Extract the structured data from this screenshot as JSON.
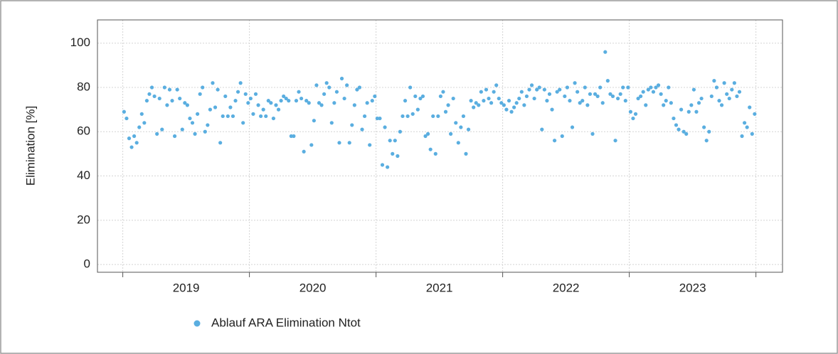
{
  "chart_data": {
    "type": "scatter",
    "y_label": "Elimination [%]",
    "x": [
      2019.01,
      2019.03,
      2019.05,
      2019.07,
      2019.09,
      2019.11,
      2019.13,
      2019.15,
      2019.17,
      2019.19,
      2019.21,
      2019.23,
      2019.25,
      2019.27,
      2019.29,
      2019.31,
      2019.33,
      2019.35,
      2019.37,
      2019.39,
      2019.41,
      2019.43,
      2019.45,
      2019.47,
      2019.49,
      2019.51,
      2019.53,
      2019.55,
      2019.57,
      2019.59,
      2019.61,
      2019.63,
      2019.65,
      2019.67,
      2019.69,
      2019.71,
      2019.73,
      2019.75,
      2019.77,
      2019.79,
      2019.81,
      2019.83,
      2019.85,
      2019.87,
      2019.89,
      2019.91,
      2019.93,
      2019.95,
      2019.97,
      2019.99,
      2020.01,
      2020.03,
      2020.05,
      2020.07,
      2020.09,
      2020.11,
      2020.13,
      2020.15,
      2020.17,
      2020.19,
      2020.21,
      2020.23,
      2020.25,
      2020.27,
      2020.29,
      2020.31,
      2020.33,
      2020.35,
      2020.37,
      2020.39,
      2020.41,
      2020.43,
      2020.45,
      2020.47,
      2020.49,
      2020.51,
      2020.53,
      2020.55,
      2020.57,
      2020.59,
      2020.61,
      2020.63,
      2020.65,
      2020.67,
      2020.69,
      2020.71,
      2020.73,
      2020.75,
      2020.77,
      2020.79,
      2020.81,
      2020.83,
      2020.85,
      2020.87,
      2020.89,
      2020.91,
      2020.93,
      2020.95,
      2020.97,
      2020.99,
      2021.01,
      2021.03,
      2021.05,
      2021.07,
      2021.09,
      2021.11,
      2021.13,
      2021.15,
      2021.17,
      2021.19,
      2021.21,
      2021.23,
      2021.25,
      2021.27,
      2021.29,
      2021.31,
      2021.33,
      2021.35,
      2021.37,
      2021.39,
      2021.41,
      2021.43,
      2021.45,
      2021.47,
      2021.49,
      2021.51,
      2021.53,
      2021.55,
      2021.57,
      2021.59,
      2021.61,
      2021.63,
      2021.65,
      2021.67,
      2021.69,
      2021.71,
      2021.73,
      2021.75,
      2021.77,
      2021.79,
      2021.81,
      2021.83,
      2021.85,
      2021.87,
      2021.89,
      2021.91,
      2021.93,
      2021.95,
      2021.97,
      2021.99,
      2022.01,
      2022.03,
      2022.05,
      2022.07,
      2022.09,
      2022.11,
      2022.13,
      2022.15,
      2022.17,
      2022.19,
      2022.21,
      2022.23,
      2022.25,
      2022.27,
      2022.29,
      2022.31,
      2022.33,
      2022.35,
      2022.37,
      2022.39,
      2022.41,
      2022.43,
      2022.45,
      2022.47,
      2022.49,
      2022.51,
      2022.53,
      2022.55,
      2022.57,
      2022.59,
      2022.61,
      2022.63,
      2022.65,
      2022.67,
      2022.69,
      2022.71,
      2022.73,
      2022.75,
      2022.77,
      2022.79,
      2022.81,
      2022.83,
      2022.85,
      2022.87,
      2022.89,
      2022.91,
      2022.93,
      2022.95,
      2022.97,
      2022.99,
      2023.01,
      2023.03,
      2023.05,
      2023.07,
      2023.09,
      2023.11,
      2023.13,
      2023.15,
      2023.17,
      2023.19,
      2023.21,
      2023.23,
      2023.25,
      2023.27,
      2023.29,
      2023.31,
      2023.33,
      2023.35,
      2023.37,
      2023.39,
      2023.41,
      2023.43,
      2023.45,
      2023.47,
      2023.49,
      2023.51,
      2023.53,
      2023.55,
      2023.57,
      2023.59,
      2023.61,
      2023.63,
      2023.65,
      2023.67,
      2023.69,
      2023.71,
      2023.73,
      2023.75,
      2023.77,
      2023.79,
      2023.81,
      2023.83,
      2023.85,
      2023.87,
      2023.89,
      2023.91,
      2023.93,
      2023.95,
      2023.97,
      2023.99
    ],
    "series": [
      {
        "name": "Ablauf ARA Elimination Ntot",
        "color": "#5aaee0",
        "values": [
          69,
          66,
          57,
          53,
          58,
          55,
          62,
          68,
          64,
          74,
          77,
          80,
          76,
          59,
          75,
          61,
          80,
          72,
          79,
          74,
          58,
          79,
          75,
          61,
          73,
          72,
          66,
          64,
          59,
          68,
          77,
          80,
          60,
          63,
          70,
          82,
          71,
          79,
          55,
          67,
          76,
          67,
          71,
          67,
          74,
          78,
          82,
          64,
          77,
          73,
          75,
          68,
          77,
          72,
          67,
          70,
          67,
          74,
          73,
          66,
          72,
          70,
          74,
          76,
          75,
          74,
          58,
          58,
          74,
          78,
          75,
          51,
          74,
          73,
          54,
          65,
          81,
          73,
          72,
          77,
          82,
          80,
          64,
          73,
          78,
          55,
          84,
          75,
          81,
          55,
          63,
          72,
          79,
          80,
          61,
          67,
          73,
          54,
          74,
          76,
          66,
          66,
          45,
          62,
          44,
          56,
          50,
          56,
          49,
          60,
          67,
          74,
          67,
          80,
          68,
          76,
          70,
          75,
          76,
          58,
          59,
          52,
          67,
          50,
          67,
          76,
          78,
          69,
          72,
          59,
          75,
          64,
          55,
          62,
          67,
          50,
          61,
          74,
          71,
          73,
          72,
          78,
          74,
          79,
          75,
          73,
          78,
          81,
          75,
          73,
          72,
          70,
          74,
          69,
          71,
          73,
          75,
          78,
          72,
          76,
          79,
          81,
          75,
          79,
          80,
          61,
          79,
          74,
          77,
          70,
          56,
          78,
          79,
          58,
          76,
          80,
          74,
          62,
          82,
          78,
          73,
          74,
          80,
          72,
          77,
          59,
          77,
          76,
          80,
          73,
          96,
          83,
          77,
          76,
          56,
          75,
          77,
          80,
          74,
          80,
          69,
          66,
          68,
          75,
          76,
          78,
          72,
          79,
          80,
          78,
          80,
          81,
          77,
          72,
          74,
          80,
          73,
          66,
          63,
          61,
          70,
          60,
          59,
          69,
          72,
          79,
          69,
          73,
          75,
          62,
          56,
          60,
          76,
          83,
          80,
          74,
          72,
          82,
          77,
          75,
          79,
          82,
          76,
          78,
          58,
          64,
          62,
          71,
          59,
          68
        ]
      }
    ],
    "xlim": [
      2018.8,
      2024.21
    ],
    "xticks": [
      {
        "value": 2019.5,
        "label": "2019"
      },
      {
        "value": 2020.5,
        "label": "2020"
      },
      {
        "value": 2021.5,
        "label": "2021"
      },
      {
        "value": 2022.5,
        "label": "2022"
      },
      {
        "value": 2023.5,
        "label": "2023"
      }
    ],
    "xbreaks": [
      2019,
      2020,
      2021,
      2022,
      2023,
      2024
    ],
    "ylim": [
      -3.5,
      110.5
    ],
    "yticks": [
      0,
      20,
      40,
      60,
      80,
      100
    ],
    "grid": true,
    "legend": "bottom"
  }
}
